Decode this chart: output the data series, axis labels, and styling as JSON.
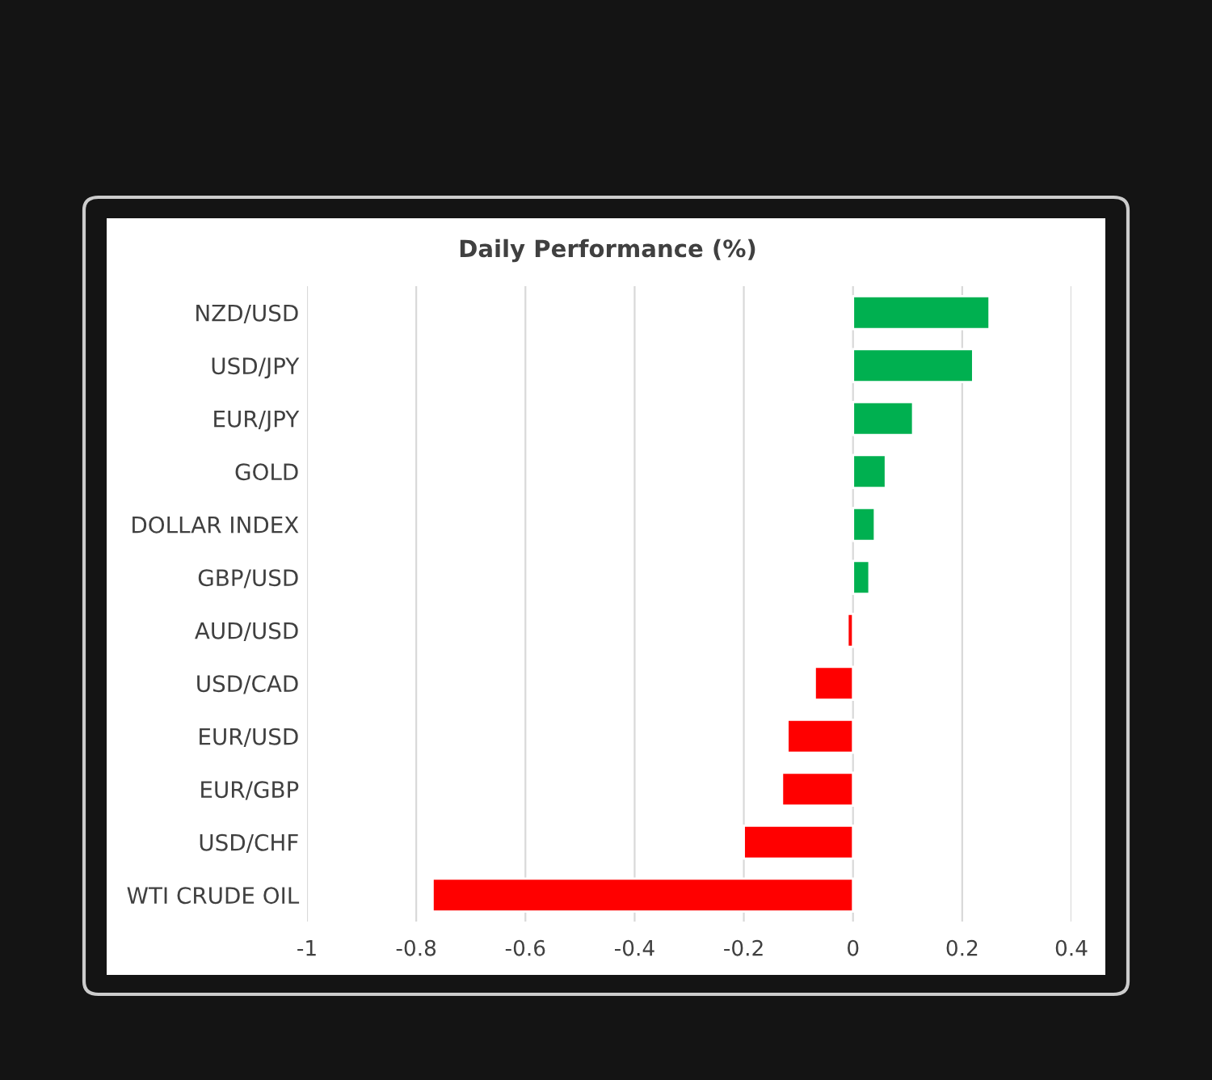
{
  "chart_data": {
    "type": "bar",
    "orientation": "horizontal",
    "title": "Daily Performance (%)",
    "categories": [
      "NZD/USD",
      "USD/JPY",
      "EUR/JPY",
      "GOLD",
      "DOLLAR INDEX",
      "GBP/USD",
      "AUD/USD",
      "USD/CAD",
      "EUR/USD",
      "EUR/GBP",
      "USD/CHF",
      "WTI CRUDE OIL"
    ],
    "values": [
      0.25,
      0.22,
      0.11,
      0.06,
      0.04,
      0.03,
      -0.01,
      -0.07,
      -0.12,
      -0.13,
      -0.2,
      -0.77
    ],
    "colors": [
      "#00b050",
      "#00b050",
      "#00b050",
      "#00b050",
      "#00b050",
      "#00b050",
      "#ff0000",
      "#ff0000",
      "#ff0000",
      "#ff0000",
      "#ff0000",
      "#ff0000"
    ],
    "xlim": [
      -1,
      0.4
    ],
    "xticks": [
      -1,
      -0.8,
      -0.6,
      -0.4,
      -0.2,
      0,
      0.2,
      0.4
    ],
    "grid": "x"
  }
}
